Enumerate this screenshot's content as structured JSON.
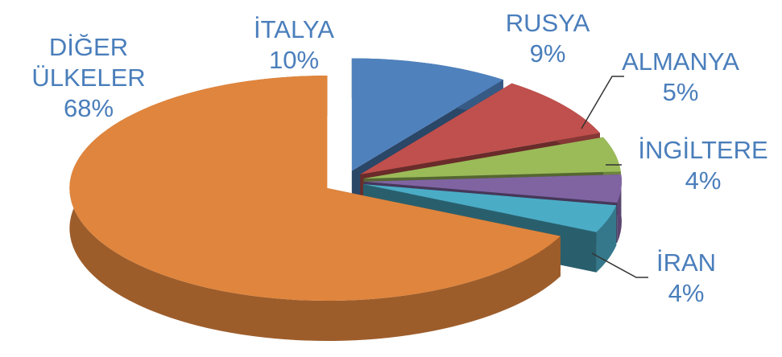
{
  "chart_data": {
    "type": "pie",
    "categories": [
      "İTALYA",
      "RUSYA",
      "ALMANYA",
      "İNGİLTERE",
      "İRAN",
      "DİĞER ÜLKELER"
    ],
    "values": [
      10,
      9,
      5,
      4,
      4,
      68
    ],
    "value_labels": [
      "10%",
      "9%",
      "5%",
      "4%",
      "4%",
      "68%"
    ],
    "colors": [
      "#4f81bd",
      "#c0504d",
      "#9bbb59",
      "#8064a2",
      "#4bacc6",
      "#e0853d"
    ],
    "label_color": "#4a7ebb"
  }
}
